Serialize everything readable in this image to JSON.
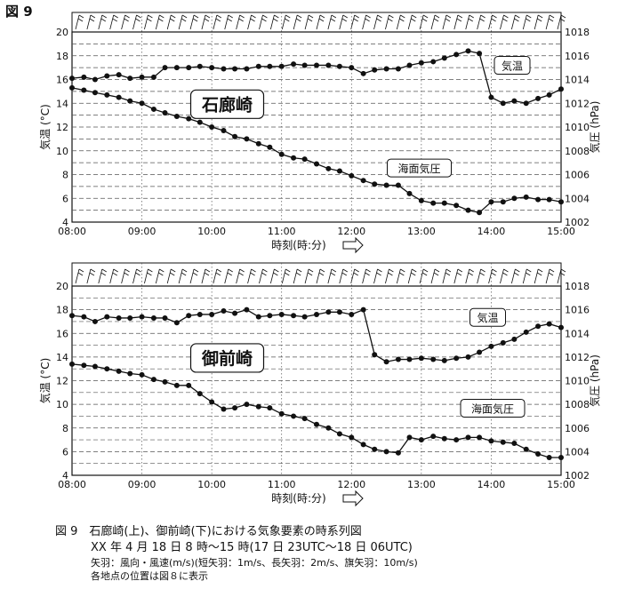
{
  "figure_label": "図 9",
  "caption": {
    "line1": "図 9　石廊崎(上)、御前崎(下)における気象要素の時系列図",
    "line2": "XX 年 4 月 18 日 8 時〜15 時(17 日 23UTC〜18 日 06UTC)",
    "line3": "矢羽：風向・風速(m/s)(短矢羽：1m/s、長矢羽：2m/s、旗矢羽：10m/s)",
    "line4": "各地点の位置は図８に表示"
  },
  "colors": {
    "line": "#111111",
    "grid": "#555555",
    "background": "#ffffff"
  },
  "chart_data": [
    {
      "type": "line",
      "station": "石廊崎",
      "xlabel": "時刻(時:分)",
      "ylabel_left": "気温 (°C)",
      "ylabel_right": "気圧 (hPa)",
      "x_ticks": [
        "08:00",
        "09:00",
        "10:00",
        "11:00",
        "12:00",
        "13:00",
        "14:00",
        "15:00"
      ],
      "ylim_left": [
        4,
        20
      ],
      "yticks_left": [
        4,
        6,
        8,
        10,
        12,
        14,
        16,
        18,
        20
      ],
      "ylim_right": [
        1002,
        1018
      ],
      "yticks_right": [
        1002,
        1004,
        1006,
        1008,
        1010,
        1012,
        1014,
        1016,
        1018
      ],
      "wind_barbs": "top strip",
      "series": [
        {
          "name": "気温",
          "axis": "left",
          "x": [
            0,
            0.17,
            0.33,
            0.5,
            0.67,
            0.83,
            1.0,
            1.17,
            1.33,
            1.5,
            1.67,
            1.83,
            2.0,
            2.17,
            2.33,
            2.5,
            2.67,
            2.83,
            3.0,
            3.17,
            3.33,
            3.5,
            3.67,
            3.83,
            4.0,
            4.17,
            4.33,
            4.5,
            4.67,
            4.83,
            5.0,
            5.17,
            5.33,
            5.5,
            5.67,
            5.83,
            6.0,
            6.17,
            6.33,
            6.5,
            6.67,
            6.83,
            7.0
          ],
          "y": [
            16.1,
            16.2,
            16.0,
            16.3,
            16.4,
            16.1,
            16.2,
            16.2,
            17.0,
            17.0,
            17.0,
            17.1,
            17.0,
            16.9,
            16.9,
            16.9,
            17.1,
            17.1,
            17.1,
            17.3,
            17.2,
            17.2,
            17.2,
            17.1,
            17.0,
            16.5,
            16.8,
            16.9,
            16.9,
            17.2,
            17.4,
            17.5,
            17.8,
            18.1,
            18.4,
            18.2,
            14.5,
            14.0,
            14.2,
            14.0,
            14.4,
            14.7,
            15.2
          ]
        },
        {
          "name": "海面気圧",
          "axis": "right",
          "x": [
            0,
            0.17,
            0.33,
            0.5,
            0.67,
            0.83,
            1.0,
            1.17,
            1.33,
            1.5,
            1.67,
            1.83,
            2.0,
            2.17,
            2.33,
            2.5,
            2.67,
            2.83,
            3.0,
            3.17,
            3.33,
            3.5,
            3.67,
            3.83,
            4.0,
            4.17,
            4.33,
            4.5,
            4.67,
            4.83,
            5.0,
            5.17,
            5.33,
            5.5,
            5.67,
            5.83,
            6.0,
            6.17,
            6.33,
            6.5,
            6.67,
            6.83,
            7.0
          ],
          "y": [
            1013.3,
            1013.1,
            1012.9,
            1012.7,
            1012.5,
            1012.2,
            1012.0,
            1011.5,
            1011.2,
            1010.9,
            1010.7,
            1010.4,
            1010.0,
            1009.7,
            1009.2,
            1009.0,
            1008.6,
            1008.3,
            1007.7,
            1007.4,
            1007.3,
            1006.9,
            1006.5,
            1006.3,
            1005.9,
            1005.5,
            1005.2,
            1005.1,
            1005.1,
            1004.4,
            1003.8,
            1003.6,
            1003.6,
            1003.4,
            1003.0,
            1002.8,
            1003.7,
            1003.7,
            1004.0,
            1004.1,
            1003.9,
            1003.9,
            1003.7
          ]
        }
      ],
      "labels": {
        "station": "石廊崎",
        "temp_callout": "気温",
        "pressure_callout": "海面気圧"
      }
    },
    {
      "type": "line",
      "station": "御前崎",
      "xlabel": "時刻(時:分)",
      "ylabel_left": "気温 (°C)",
      "ylabel_right": "気圧 (hPa)",
      "x_ticks": [
        "08:00",
        "09:00",
        "10:00",
        "11:00",
        "12:00",
        "13:00",
        "14:00",
        "15:00"
      ],
      "ylim_left": [
        4,
        20
      ],
      "yticks_left": [
        4,
        6,
        8,
        10,
        12,
        14,
        16,
        18,
        20
      ],
      "ylim_right": [
        1002,
        1018
      ],
      "yticks_right": [
        1002,
        1004,
        1006,
        1008,
        1010,
        1012,
        1014,
        1016,
        1018
      ],
      "wind_barbs": "top strip",
      "series": [
        {
          "name": "気温",
          "axis": "left",
          "x": [
            0,
            0.17,
            0.33,
            0.5,
            0.67,
            0.83,
            1.0,
            1.17,
            1.33,
            1.5,
            1.67,
            1.83,
            2.0,
            2.17,
            2.33,
            2.5,
            2.67,
            2.83,
            3.0,
            3.17,
            3.33,
            3.5,
            3.67,
            3.83,
            4.0,
            4.17,
            4.33,
            4.5,
            4.67,
            4.83,
            5.0,
            5.17,
            5.33,
            5.5,
            5.67,
            5.83,
            6.0,
            6.17,
            6.33,
            6.5,
            6.67,
            6.83,
            7.0
          ],
          "y": [
            17.5,
            17.4,
            17.0,
            17.4,
            17.3,
            17.3,
            17.4,
            17.3,
            17.3,
            16.9,
            17.5,
            17.6,
            17.6,
            17.9,
            17.7,
            18.0,
            17.4,
            17.5,
            17.6,
            17.5,
            17.4,
            17.6,
            17.8,
            17.8,
            17.6,
            18.0,
            14.2,
            13.6,
            13.8,
            13.8,
            13.9,
            13.8,
            13.7,
            13.9,
            14.0,
            14.4,
            14.9,
            15.2,
            15.5,
            16.1,
            16.6,
            16.8,
            16.5
          ]
        },
        {
          "name": "海面気圧",
          "axis": "right",
          "x": [
            0,
            0.17,
            0.33,
            0.5,
            0.67,
            0.83,
            1.0,
            1.17,
            1.33,
            1.5,
            1.67,
            1.83,
            2.0,
            2.17,
            2.33,
            2.5,
            2.67,
            2.83,
            3.0,
            3.17,
            3.33,
            3.5,
            3.67,
            3.83,
            4.0,
            4.17,
            4.33,
            4.5,
            4.67,
            4.83,
            5.0,
            5.17,
            5.33,
            5.5,
            5.67,
            5.83,
            6.0,
            6.17,
            6.33,
            6.5,
            6.67,
            6.83,
            7.0
          ],
          "y": [
            1011.4,
            1011.3,
            1011.2,
            1011.0,
            1010.8,
            1010.6,
            1010.5,
            1010.1,
            1009.9,
            1009.6,
            1009.6,
            1008.9,
            1008.2,
            1007.6,
            1007.7,
            1008.0,
            1007.8,
            1007.7,
            1007.2,
            1007.0,
            1006.8,
            1006.3,
            1006.0,
            1005.5,
            1005.2,
            1004.6,
            1004.2,
            1004.0,
            1003.9,
            1005.2,
            1005.0,
            1005.3,
            1005.1,
            1005.0,
            1005.2,
            1005.2,
            1004.9,
            1004.8,
            1004.7,
            1004.2,
            1003.8,
            1003.5,
            1003.5
          ]
        }
      ],
      "labels": {
        "station": "御前崎",
        "temp_callout": "気温",
        "pressure_callout": "海面気圧"
      }
    }
  ]
}
